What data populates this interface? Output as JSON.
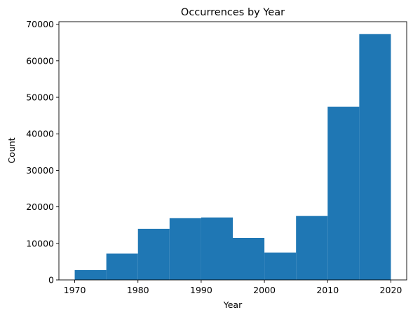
{
  "chart_data": {
    "type": "bar",
    "title": "Occurrences by Year",
    "xlabel": "Year",
    "ylabel": "Count",
    "bin_edges": [
      1970,
      1975,
      1980,
      1985,
      1990,
      1995,
      2000,
      2005,
      2010,
      2015,
      2020
    ],
    "values": [
      2700,
      7200,
      14000,
      16900,
      17100,
      11500,
      7500,
      17500,
      47400,
      67300
    ],
    "xlim": [
      1967.5,
      2022.5
    ],
    "ylim": [
      0,
      70700
    ],
    "xticks": [
      1970,
      1980,
      1990,
      2000,
      2010,
      2020
    ],
    "yticks": [
      0,
      10000,
      20000,
      30000,
      40000,
      50000,
      60000,
      70000
    ],
    "bar_color": "#1f77b4",
    "grid": false,
    "legend": "none"
  }
}
